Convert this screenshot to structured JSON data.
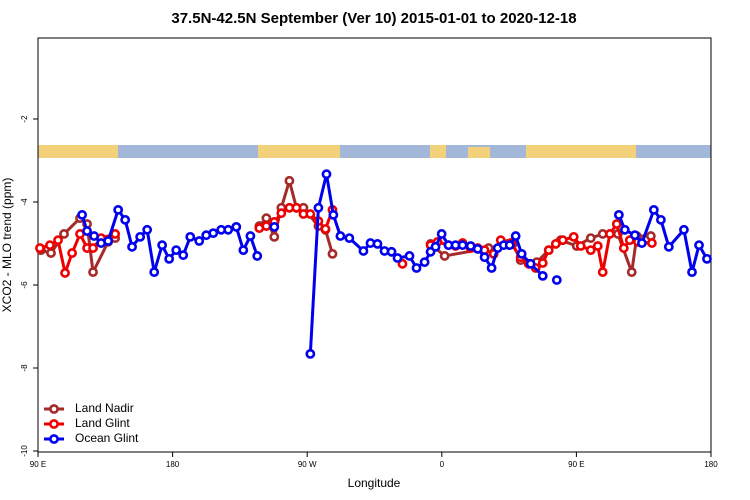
{
  "chart_data": {
    "type": "line",
    "title": "37.5N-42.5N September (Ver 10)   2015-01-01 to 2020-12-18",
    "x_label": "Longitude",
    "y_label": "XCO2 - MLO trend (ppm)",
    "xlim": [
      90,
      540
    ],
    "xticks": [
      {
        "value": 90,
        "label": "90 E"
      },
      {
        "value": 180,
        "label": "180"
      },
      {
        "value": 270,
        "label": "90 W"
      },
      {
        "value": 360,
        "label": "0"
      },
      {
        "value": 450,
        "label": "90 E"
      },
      {
        "value": 540,
        "label": "180"
      }
    ],
    "ylim": [
      -10,
      0
    ],
    "yticks": [
      -10,
      -8,
      -6,
      -4,
      -2
    ],
    "legend": "bottom-left",
    "series": [
      {
        "name": "Land Nadir",
        "color": "#a52a2a",
        "x": [
          92.0,
          98.7,
          107.4,
          118.1,
          122.8,
          126.8,
          136.9,
          141.6,
          null,
          238.0,
          242.7,
          248.0,
          252.7,
          258.1,
          262.8,
          267.5,
          277.5,
          282.2,
          286.9,
          null,
          352.5,
          361.9,
          391.3,
          404.0,
          407.4,
          412.7,
          423.5,
          431.5,
          439.5,
          450.2,
          459.6,
          467.6,
          477.7,
          487.0,
          490.4,
          499.8
        ],
        "values": [
          -5.16,
          -5.23,
          -4.77,
          -4.39,
          -4.53,
          -5.69,
          -4.96,
          -4.87,
          null,
          -4.58,
          -4.39,
          -4.84,
          -4.14,
          -3.49,
          -4.14,
          -4.14,
          -4.58,
          -4.67,
          -5.25,
          null,
          -5.01,
          -5.3,
          -5.11,
          -5.01,
          -5.01,
          -5.4,
          -5.45,
          -5.16,
          -4.92,
          -5.06,
          -4.87,
          -4.77,
          -4.77,
          -5.69,
          -4.82,
          -4.82
        ]
      },
      {
        "name": "Land Glint",
        "color": "#ee0000",
        "x": [
          91.3,
          98.0,
          103.4,
          108.1,
          112.8,
          118.1,
          122.8,
          126.8,
          132.2,
          141.6,
          null,
          238.0,
          242.7,
          248.0,
          252.7,
          258.1,
          262.8,
          267.5,
          272.1,
          277.5,
          282.2,
          286.9,
          null,
          333.7,
          null,
          352.5,
          357.2,
          364.5,
          369.2,
          373.9,
          379.3,
          384.0,
          388.6,
          394.7,
          399.4,
          406.1,
          412.7,
          418.1,
          422.8,
          427.5,
          431.5,
          436.2,
          440.9,
          448.2,
          452.9,
          459.6,
          464.3,
          467.6,
          472.4,
          477.0,
          481.7,
          485.7,
          491.1,
          500.5
        ],
        "values": [
          -5.11,
          -5.04,
          -4.92,
          -5.71,
          -5.23,
          -4.77,
          -5.11,
          -5.11,
          -4.87,
          -4.77,
          null,
          -4.63,
          -4.58,
          -4.48,
          -4.27,
          -4.14,
          -4.14,
          -4.29,
          -4.29,
          -4.46,
          -4.65,
          -4.19,
          null,
          -5.49,
          null,
          -5.04,
          -4.96,
          -5.04,
          -5.06,
          -4.99,
          -5.11,
          -5.11,
          -5.16,
          -5.25,
          -4.92,
          -4.99,
          -5.33,
          -5.49,
          -5.59,
          -5.47,
          -5.16,
          -5.01,
          -4.92,
          -4.84,
          -5.06,
          -5.16,
          -5.06,
          -5.69,
          -4.77,
          -4.53,
          -5.11,
          -4.92,
          -4.96,
          -4.99
        ]
      },
      {
        "name": "Ocean Glint",
        "color": "#0000ee",
        "x": [
          119.5,
          122.8,
          127.5,
          132.2,
          136.9,
          143.6,
          148.3,
          152.9,
          158.3,
          163.0,
          167.7,
          173.0,
          177.7,
          182.4,
          187.1,
          191.8,
          197.8,
          202.5,
          207.2,
          212.5,
          217.2,
          222.6,
          227.3,
          232.0,
          236.6,
          null,
          248.0,
          null,
          272.1,
          277.5,
          282.9,
          287.5,
          292.2,
          298.2,
          307.6,
          312.3,
          317.0,
          321.7,
          326.4,
          330.4,
          338.4,
          343.1,
          348.5,
          352.5,
          355.8,
          359.9,
          364.5,
          369.2,
          373.9,
          379.3,
          384.0,
          388.6,
          393.3,
          397.4,
          401.4,
          405.4,
          409.4,
          413.4,
          419.4,
          427.5,
          null,
          436.9,
          null,
          478.4,
          482.4,
          489.1,
          493.8,
          501.8,
          506.5,
          511.8,
          521.9,
          527.3,
          532.0,
          537.3
        ],
        "values": [
          -4.31,
          -4.7,
          -4.82,
          -4.99,
          -4.94,
          -4.19,
          -4.43,
          -5.08,
          -4.84,
          -4.67,
          -5.69,
          -5.04,
          -5.37,
          -5.16,
          -5.28,
          -4.84,
          -4.94,
          -4.8,
          -4.75,
          -4.67,
          -4.67,
          -4.6,
          -5.16,
          -4.82,
          -5.3,
          null,
          -4.6,
          null,
          -7.66,
          -4.14,
          -3.33,
          -4.31,
          -4.82,
          -4.87,
          -5.18,
          -4.99,
          -5.01,
          -5.18,
          -5.2,
          -5.35,
          -5.3,
          -5.59,
          -5.45,
          -5.2,
          -5.08,
          -4.77,
          -5.04,
          -5.04,
          -5.04,
          -5.06,
          -5.13,
          -5.33,
          -5.59,
          -5.11,
          -5.04,
          -5.04,
          -4.82,
          -5.25,
          -5.49,
          -5.78,
          null,
          -5.88,
          null,
          -4.31,
          -4.67,
          -4.8,
          -4.99,
          -4.19,
          -4.43,
          -5.08,
          -4.67,
          -5.69,
          -5.04,
          -5.37
        ]
      }
    ]
  }
}
